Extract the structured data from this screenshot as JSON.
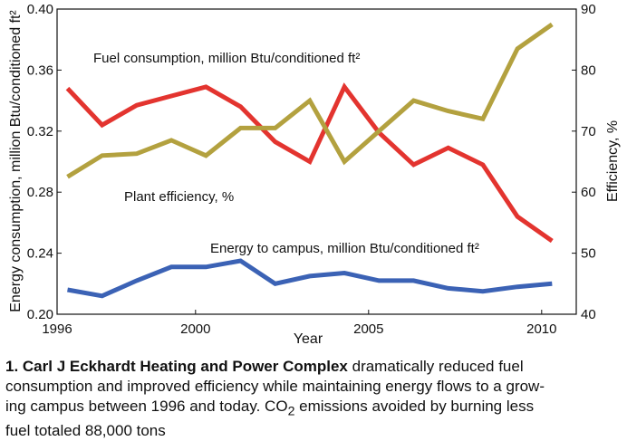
{
  "chart_data": {
    "type": "line",
    "title": "",
    "xlabel": "Year",
    "ylabel_left": "Energy consumption, million Btu/conditioned ft²",
    "ylabel_right": "Efficiency, %",
    "xlim": [
      1996,
      2011
    ],
    "ylim_left": [
      0.2,
      0.4
    ],
    "ylim_right": [
      40,
      90
    ],
    "x_ticks": [
      "1996",
      "2000",
      "2005",
      "2010"
    ],
    "y_left_ticks": [
      "0.40",
      "0.36",
      "0.32",
      "0.28",
      "0.24",
      "0.20"
    ],
    "y_right_ticks": [
      "90",
      "80",
      "70",
      "60",
      "50",
      "40"
    ],
    "grid": false,
    "x": [
      1996.3,
      1997.3,
      1998.3,
      1999.3,
      2000.3,
      2001.3,
      2002.3,
      2003.3,
      2004.3,
      2005.3,
      2006.3,
      2007.3,
      2008.3,
      2009.3,
      2010.3
    ],
    "series": [
      {
        "name": "Fuel consumption, million Btu/conditioned ft²",
        "axis": "left",
        "color": "#e3342f",
        "values": [
          0.348,
          0.324,
          0.337,
          0.343,
          0.349,
          0.336,
          0.313,
          0.3,
          0.349,
          0.319,
          0.298,
          0.309,
          0.298,
          0.264,
          0.248
        ]
      },
      {
        "name": "Plant efficiency, %",
        "axis": "right",
        "color": "#b3a13f",
        "values": [
          62.5,
          66,
          66.3,
          68.5,
          66,
          70.5,
          70.5,
          75,
          65,
          70,
          75,
          73.3,
          72,
          83.5,
          87.5
        ]
      },
      {
        "name": "Energy to campus, million Btu/conditioned ft²",
        "axis": "left",
        "color": "#3b62b5",
        "values": [
          0.216,
          0.212,
          0.222,
          0.231,
          0.231,
          0.235,
          0.22,
          0.225,
          0.227,
          0.222,
          0.222,
          0.217,
          0.215,
          0.218,
          0.22
        ]
      }
    ]
  },
  "caption": {
    "bold": "1. Carl J Eckhardt Heating and Power Complex",
    "line1_rest": " dramatically reduced fuel",
    "line2": "consumption and improved efficiency while maintaining energy flows to a grow-",
    "line3_pre": "ing campus between 1996 and today. CO",
    "line3_sub": "2",
    "line3_post": " emissions avoided by burning less",
    "line4": "fuel totaled 88,000 tons"
  }
}
